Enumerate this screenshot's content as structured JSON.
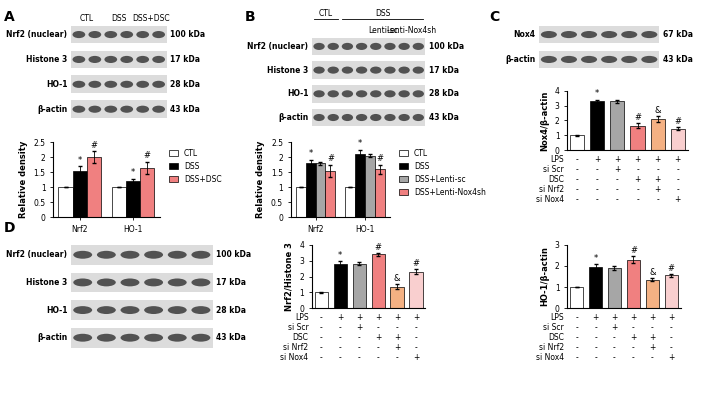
{
  "chart_data": [
    {
      "type": "bar",
      "ylabel": "Relative density",
      "categories": [
        "Nrf2",
        "HO-1"
      ],
      "ylim": [
        0,
        2.5
      ],
      "yticks": [
        0,
        0.5,
        1,
        1.5,
        2,
        2.5
      ],
      "grid": false,
      "legend": "upper left",
      "series": [
        {
          "name": "CTL",
          "color": "#ffffff",
          "values": [
            1,
            1
          ],
          "errors": [
            0,
            0
          ],
          "annotations": [
            null,
            null
          ]
        },
        {
          "name": "DSS",
          "color": "#000000",
          "values": [
            1.55,
            1.2
          ],
          "errors": [
            0.15,
            0.08
          ],
          "annotations": [
            "*",
            "*"
          ]
        },
        {
          "name": "DSS+DSC",
          "color": "#f08080",
          "values": [
            2.0,
            1.65
          ],
          "errors": [
            0.2,
            0.2
          ],
          "annotations": [
            "#",
            "#"
          ]
        }
      ]
    },
    {
      "type": "bar",
      "ylabel": "Relative density",
      "categories": [
        "Nrf2",
        "HO-1"
      ],
      "ylim": [
        0,
        2.5
      ],
      "yticks": [
        0,
        0.5,
        1,
        1.5,
        2,
        2.5
      ],
      "grid": false,
      "legend": "upper left",
      "series": [
        {
          "name": "CTL",
          "color": "#ffffff",
          "values": [
            1,
            1
          ],
          "errors": [
            0,
            0
          ],
          "annotations": [
            null,
            null
          ]
        },
        {
          "name": "DSS",
          "color": "#000000",
          "values": [
            1.8,
            2.1
          ],
          "errors": [
            0.12,
            0.15
          ],
          "annotations": [
            "*",
            "*"
          ]
        },
        {
          "name": "DSS+Lenti-sc",
          "color": "#a6a6a6",
          "values": [
            1.8,
            2.05
          ],
          "errors": [
            0.05,
            0.05
          ],
          "annotations": [
            null,
            null
          ]
        },
        {
          "name": "DSS+Lenti-Nox4sh",
          "color": "#f08080",
          "values": [
            1.55,
            1.6
          ],
          "errors": [
            0.2,
            0.15
          ],
          "annotations": [
            "#",
            "#"
          ]
        }
      ]
    },
    {
      "type": "bar",
      "ylabel": "Nox4/β-actin",
      "categories": [
        null,
        null,
        null,
        null,
        null,
        null
      ],
      "tick_labels": "y",
      "ylim": [
        0,
        4
      ],
      "yticks": [
        0,
        1,
        2,
        3,
        4
      ],
      "grid": false,
      "values": [
        1,
        3.3,
        3.3,
        1.65,
        2.1,
        1.45
      ],
      "errors": [
        0.02,
        0.1,
        0.1,
        0.15,
        0.2,
        0.1
      ],
      "annotations": [
        null,
        "*",
        null,
        "#",
        "&",
        "#"
      ],
      "colors": [
        "#ffffff",
        "#000000",
        "#a6a6a6",
        "#f08080",
        "#f4b183",
        "#f9cfcf"
      ]
    },
    {
      "type": "bar",
      "ylabel": "Nrf2/Histone 3",
      "categories": [
        null,
        null,
        null,
        null,
        null,
        null
      ],
      "tick_labels": "y",
      "ylim": [
        0,
        4
      ],
      "yticks": [
        0,
        1,
        2,
        3,
        4
      ],
      "grid": false,
      "values": [
        1,
        2.8,
        2.8,
        3.4,
        1.35,
        2.3
      ],
      "errors": [
        0.02,
        0.15,
        0.1,
        0.08,
        0.15,
        0.15
      ],
      "annotations": [
        null,
        "*",
        null,
        "#",
        "&",
        "#"
      ],
      "colors": [
        "#ffffff",
        "#000000",
        "#a6a6a6",
        "#f08080",
        "#f4b183",
        "#f9cfcf"
      ]
    },
    {
      "type": "bar",
      "ylabel": "HO-1/β-actin",
      "categories": [
        null,
        null,
        null,
        null,
        null,
        null
      ],
      "tick_labels": "y",
      "ylim": [
        0,
        3
      ],
      "yticks": [
        0,
        1,
        2,
        3
      ],
      "grid": false,
      "values": [
        1,
        1.95,
        1.9,
        2.3,
        1.35,
        1.55
      ],
      "errors": [
        0.02,
        0.12,
        0.08,
        0.15,
        0.08,
        0.05
      ],
      "annotations": [
        null,
        "*",
        null,
        "#",
        "&",
        "#"
      ],
      "colors": [
        "#ffffff",
        "#000000",
        "#a6a6a6",
        "#f08080",
        "#f4b183",
        "#f9cfcf"
      ]
    }
  ],
  "conditions": [
    {
      "name": "LPS",
      "signs": [
        "-",
        "+",
        "+",
        "+",
        "+",
        "+"
      ]
    },
    {
      "name": "si Scr",
      "signs": [
        "-",
        "-",
        "+",
        "-",
        "-",
        "-"
      ]
    },
    {
      "name": "DSC",
      "signs": [
        "-",
        "-",
        "-",
        "+",
        "+",
        "-"
      ]
    },
    {
      "name": "si Nrf2",
      "signs": [
        "-",
        "-",
        "-",
        "-",
        "+",
        "-"
      ]
    },
    {
      "name": "si Nox4",
      "signs": [
        "-",
        "-",
        "-",
        "-",
        "-",
        "+"
      ]
    }
  ],
  "blots": [
    {
      "panel": "A",
      "lanes": 6,
      "groups": [
        {
          "label": "CTL",
          "lanes": 2
        },
        {
          "label": "DSS",
          "lanes": 2
        },
        {
          "label": "DSS+DSC",
          "lanes": 2
        }
      ],
      "rows": [
        {
          "name": "Nrf2 (nuclear)",
          "size": "100 kDa"
        },
        {
          "name": "Histone 3",
          "size": "17 kDa"
        },
        {
          "name": "HO-1",
          "size": "28 kDa"
        },
        {
          "name": "β-actin",
          "size": "43 kDa"
        }
      ]
    },
    {
      "panel": "B",
      "lanes": 8,
      "groups": [
        {
          "label": "CTL",
          "lanes": 2
        },
        {
          "label": "DSS",
          "lanes": 6
        }
      ],
      "subgroups": [
        {
          "label": "Lenti-sc",
          "start": 4,
          "lanes": 2
        },
        {
          "label": "Lenti-Nox4sh",
          "start": 6,
          "lanes": 2
        }
      ],
      "rows": [
        {
          "name": "Nrf2 (nuclear)",
          "size": "100 kDa"
        },
        {
          "name": "Histone 3",
          "size": "17 kDa"
        },
        {
          "name": "HO-1",
          "size": "28 kDa"
        },
        {
          "name": "β-actin",
          "size": "43 kDa"
        }
      ]
    },
    {
      "panel": "C",
      "lanes": 6,
      "rows": [
        {
          "name": "Nox4",
          "size": "67 kDa"
        },
        {
          "name": "β-actin",
          "size": "43 kDa"
        }
      ]
    },
    {
      "panel": "D",
      "lanes": 6,
      "rows": [
        {
          "name": "Nrf2 (nuclear)",
          "size": "100 kDa"
        },
        {
          "name": "Histone 3",
          "size": "17 kDa"
        },
        {
          "name": "HO-1",
          "size": "28 kDa"
        },
        {
          "name": "β-actin",
          "size": "43 kDa"
        }
      ]
    }
  ]
}
